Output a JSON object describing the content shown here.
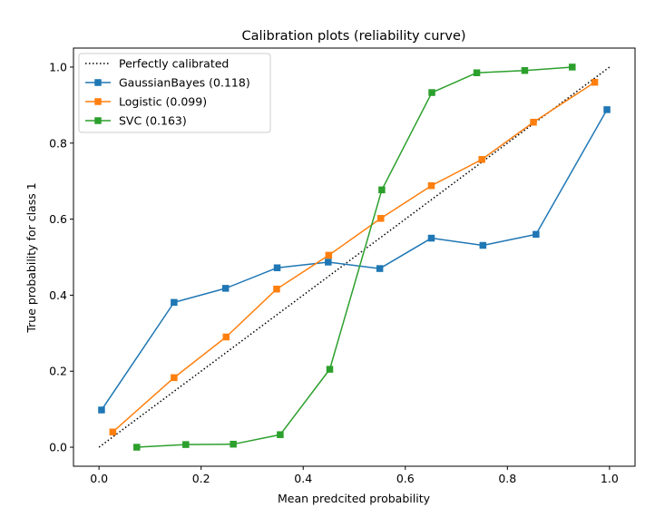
{
  "chart_data": {
    "type": "line",
    "title": "Calibration plots (reliability curve)",
    "xlabel": "Mean predcited probability",
    "ylabel": "True probability for class 1",
    "xlim": [
      -0.05,
      1.05
    ],
    "ylim": [
      -0.05,
      1.05
    ],
    "x_ticks": [
      0.0,
      0.2,
      0.4,
      0.6,
      0.8,
      1.0
    ],
    "x_tick_labels": [
      "0.0",
      "0.2",
      "0.4",
      "0.6",
      "0.8",
      "1.0"
    ],
    "y_ticks": [
      0.0,
      0.2,
      0.4,
      0.6,
      0.8,
      1.0
    ],
    "y_tick_labels": [
      "0.0",
      "0.2",
      "0.4",
      "0.6",
      "0.8",
      "1.0"
    ],
    "grid": false,
    "legend_position": "top-left",
    "reference": {
      "name": "Perfectly calibrated",
      "x": [
        0,
        1
      ],
      "y": [
        0,
        1
      ],
      "color": "#000000",
      "style": "dotted"
    },
    "series": [
      {
        "name": "GaussianBayes (0.118)",
        "color": "#1f77b4",
        "marker": "square",
        "x": [
          0.005,
          0.147,
          0.248,
          0.349,
          0.449,
          0.55,
          0.651,
          0.752,
          0.856,
          0.995
        ],
        "y": [
          0.098,
          0.381,
          0.418,
          0.472,
          0.487,
          0.47,
          0.55,
          0.531,
          0.56,
          0.888
        ]
      },
      {
        "name": "Logistic (0.099)",
        "color": "#ff7f0e",
        "marker": "square",
        "x": [
          0.027,
          0.147,
          0.249,
          0.348,
          0.45,
          0.552,
          0.651,
          0.75,
          0.851,
          0.971
        ],
        "y": [
          0.04,
          0.183,
          0.29,
          0.416,
          0.505,
          0.602,
          0.688,
          0.757,
          0.855,
          0.96
        ]
      },
      {
        "name": "SVC (0.163)",
        "color": "#2ca02c",
        "marker": "square",
        "x": [
          0.074,
          0.17,
          0.263,
          0.355,
          0.452,
          0.554,
          0.652,
          0.74,
          0.834,
          0.927
        ],
        "y": [
          0.0,
          0.007,
          0.008,
          0.033,
          0.205,
          0.677,
          0.933,
          0.985,
          0.991,
          1.0
        ]
      }
    ]
  }
}
